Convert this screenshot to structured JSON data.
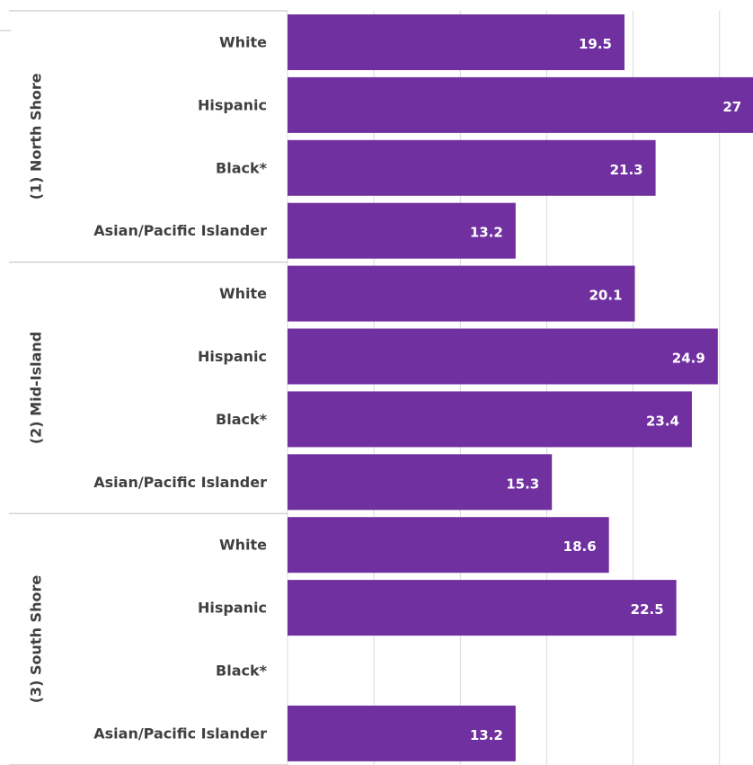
{
  "chart_data": {
    "type": "bar",
    "orientation": "horizontal",
    "groups": [
      {
        "label": "(1) North Shore",
        "categories": [
          "White",
          "Hispanic",
          "Black*",
          "Asian/Pacific Islander"
        ],
        "values": [
          19.5,
          27,
          21.3,
          13.2
        ]
      },
      {
        "label": "(2) Mid-Island",
        "categories": [
          "White",
          "Hispanic",
          "Black*",
          "Asian/Pacific Islander"
        ],
        "values": [
          20.1,
          24.9,
          23.4,
          15.3
        ]
      },
      {
        "label": "(3) South Shore",
        "categories": [
          "White",
          "Hispanic",
          "Black*",
          "Asian/Pacific Islander"
        ],
        "values": [
          18.6,
          22.5,
          null,
          13.2
        ]
      }
    ],
    "bar_color": "#7030a0",
    "data_label_color": "#ffffff",
    "gridlines": "vertical",
    "x_gridline_step": 5,
    "x_visible_max": 27.5
  }
}
